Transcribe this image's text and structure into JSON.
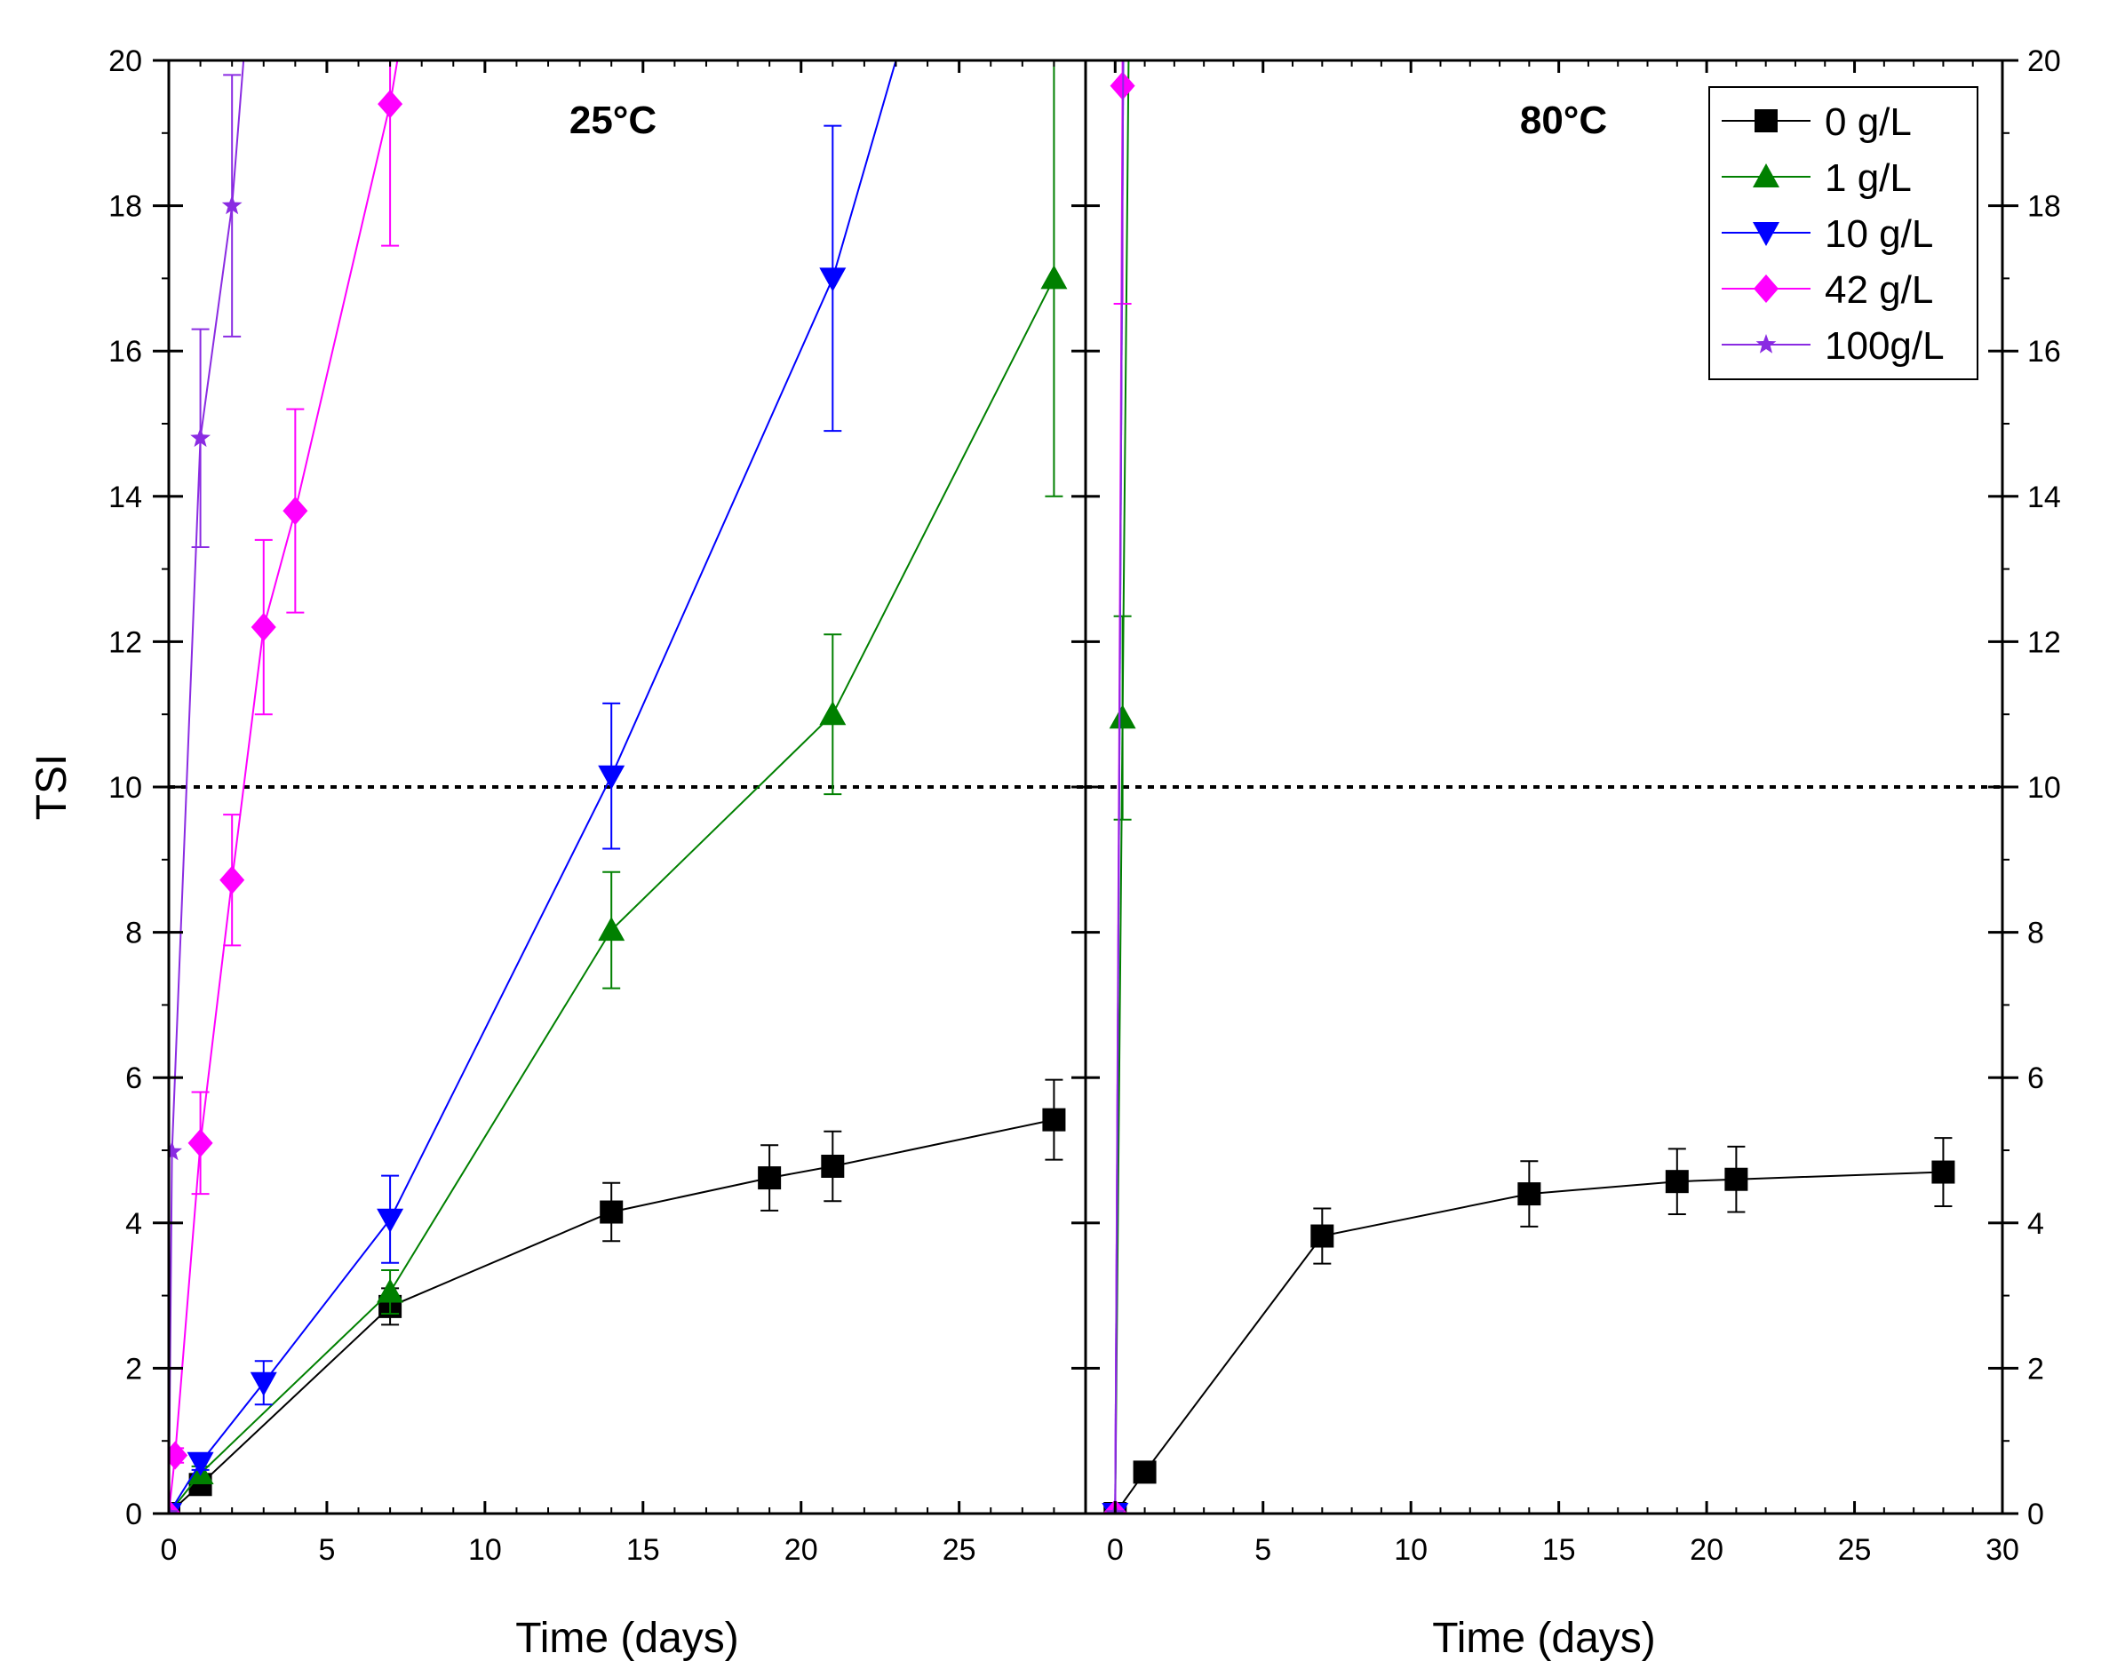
{
  "chart_data": {
    "type": "line",
    "ylabel": "TSI",
    "ylim": [
      0,
      20
    ],
    "yticks": [
      "0",
      "2",
      "4",
      "6",
      "8",
      "10",
      "12",
      "14",
      "16",
      "18",
      "20"
    ],
    "reference_line": {
      "y": 10,
      "style": "dotted"
    },
    "legend": {
      "placement": "top-right",
      "entries": [
        {
          "name": "0 g/L",
          "color": "#000000",
          "marker": "square"
        },
        {
          "name": "1 g/L",
          "color": "#008000",
          "marker": "triangle-up"
        },
        {
          "name": "10 g/L",
          "color": "#0000ff",
          "marker": "triangle-down"
        },
        {
          "name": "42 g/L",
          "color": "#ff00ff",
          "marker": "diamond"
        },
        {
          "name": "100g/L",
          "color": "#8a2be2",
          "marker": "star"
        }
      ]
    },
    "panels": [
      {
        "title": "25°C",
        "xlabel": "Time (days)",
        "xlim": [
          0,
          29
        ],
        "xticks": [
          "0",
          "5",
          "10",
          "15",
          "20",
          "25"
        ],
        "series": [
          {
            "name": "0 g/L",
            "color": "#000000",
            "marker": "square",
            "x": [
              0,
              1,
              7,
              14,
              19,
              21,
              28
            ],
            "y": [
              0,
              0.4,
              2.85,
              4.15,
              4.62,
              4.78,
              5.42
            ],
            "err": [
              0,
              0.1,
              0.25,
              0.4,
              0.45,
              0.48,
              0.55
            ]
          },
          {
            "name": "1 g/L",
            "color": "#008000",
            "marker": "triangle-up",
            "x": [
              0,
              1,
              7,
              14,
              21,
              28
            ],
            "y": [
              0,
              0.55,
              3.05,
              8.03,
              11.0,
              17.0
            ],
            "err": [
              0,
              0.1,
              0.3,
              0.8,
              1.1,
              3.0
            ]
          },
          {
            "name": "10 g/L",
            "color": "#0000ff",
            "marker": "triangle-down",
            "x": [
              0,
              1,
              3,
              7,
              14,
              21,
              24
            ],
            "y": [
              0,
              0.7,
              1.8,
              4.05,
              10.15,
              17.0,
              21.5
            ],
            "err": [
              0,
              0.1,
              0.3,
              0.6,
              1.0,
              2.1,
              0
            ]
          },
          {
            "name": "42 g/L",
            "color": "#ff00ff",
            "marker": "diamond",
            "x": [
              0,
              0.2,
              1,
              2,
              3,
              4,
              7,
              8
            ],
            "y": [
              0,
              0.8,
              5.1,
              8.72,
              12.2,
              13.8,
              19.4,
              22
            ],
            "err": [
              0,
              0.1,
              0.7,
              0.9,
              1.2,
              1.4,
              1.95,
              0
            ]
          },
          {
            "name": "100g/L",
            "color": "#8a2be2",
            "marker": "star",
            "x": [
              0,
              0.1,
              1,
              2,
              3
            ],
            "y": [
              0,
              4.98,
              14.8,
              18.0,
              23.5
            ],
            "err": [
              0,
              0,
              1.5,
              1.8,
              0
            ]
          }
        ]
      },
      {
        "title": "80°C",
        "xlabel": "Time (days)",
        "xlim": [
          -1,
          30
        ],
        "xticks": [
          "0",
          "5",
          "10",
          "15",
          "20",
          "25",
          "30"
        ],
        "series": [
          {
            "name": "0 g/L",
            "color": "#000000",
            "marker": "square",
            "x": [
              0,
              1,
              7,
              14,
              19,
              21,
              28
            ],
            "y": [
              0,
              0.57,
              3.82,
              4.4,
              4.57,
              4.6,
              4.7
            ],
            "err": [
              0,
              0,
              0.38,
              0.45,
              0.45,
              0.45,
              0.47
            ]
          },
          {
            "name": "1 g/L",
            "color": "#008000",
            "marker": "triangle-up",
            "x": [
              0,
              0.25,
              0.5
            ],
            "y": [
              0,
              10.95,
              22
            ],
            "err": [
              0,
              1.4,
              0
            ]
          },
          {
            "name": "10 g/L",
            "color": "#0000ff",
            "marker": "triangle-down",
            "x": [
              0,
              0.3
            ],
            "y": [
              0,
              22
            ],
            "err": [
              0,
              0
            ]
          },
          {
            "name": "42 g/L",
            "color": "#ff00ff",
            "marker": "diamond",
            "x": [
              0,
              0.25,
              0.35
            ],
            "y": [
              0,
              19.65,
              22
            ],
            "err": [
              0,
              3.0,
              0
            ]
          },
          {
            "name": "100g/L",
            "color": "#8a2be2",
            "marker": "star",
            "x": [
              0,
              0.3
            ],
            "y": [
              0,
              22
            ],
            "err": [
              0,
              0
            ]
          }
        ]
      }
    ]
  }
}
